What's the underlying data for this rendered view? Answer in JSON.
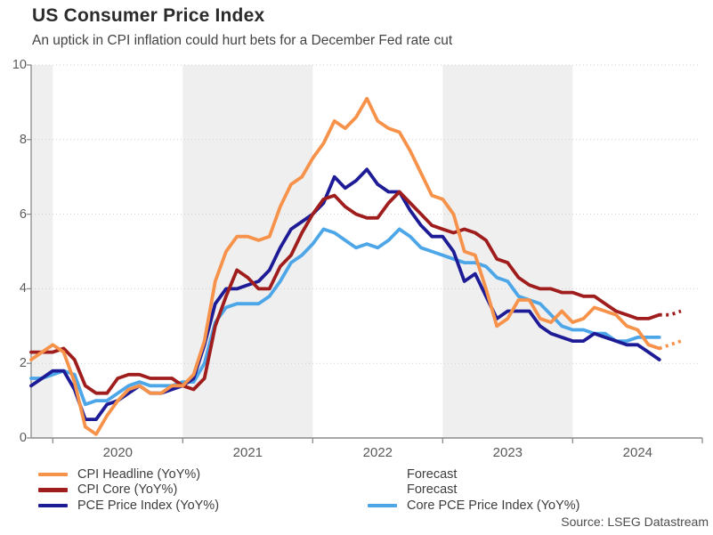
{
  "header": {
    "title": "US Consumer Price Index",
    "subtitle": "An uptick in CPI inflation could hurt bets for a December Fed rate cut"
  },
  "source_label": "Source: LSEG Datastream",
  "colors": {
    "cpi_headline": "#F7924A",
    "cpi_core": "#A01D1D",
    "pce": "#1E1B96",
    "core_pce": "#4DA6E8",
    "band": "#EFEFEF",
    "grid": "#CFCFCF",
    "axis": "#8C8C8C",
    "tick_text": "#595959"
  },
  "chart_data": {
    "type": "line",
    "title": "US Consumer Price Index",
    "subtitle": "An uptick in CPI inflation could hurt bets for a December Fed rate cut",
    "xlabel": "",
    "ylabel": "",
    "ylim": [
      0,
      10
    ],
    "yticks": [
      0,
      2,
      4,
      6,
      8,
      10
    ],
    "x_ticks_years": [
      "2020",
      "2021",
      "2022",
      "2023",
      "2024"
    ],
    "x_monthly_from": "2019-11",
    "x_solid_until": "2024-09",
    "forecast_months": [
      "2024-10",
      "2024-11"
    ],
    "grid": "horizontal-dotted",
    "background_bands_gray": [
      "pre-2020",
      "2021",
      "2023"
    ],
    "legend_position": "bottom",
    "series": [
      {
        "name": "Core PCE Price Index (YoY%)",
        "color": "#4DA6E8",
        "style": "solid",
        "values": [
          1.6,
          1.6,
          1.7,
          1.8,
          1.7,
          0.9,
          1.0,
          1.0,
          1.2,
          1.4,
          1.5,
          1.4,
          1.4,
          1.4,
          1.5,
          1.5,
          2.0,
          3.1,
          3.5,
          3.6,
          3.6,
          3.6,
          3.8,
          4.2,
          4.7,
          4.9,
          5.2,
          5.6,
          5.5,
          5.3,
          5.1,
          5.2,
          5.1,
          5.3,
          5.6,
          5.4,
          5.1,
          5.0,
          4.9,
          4.8,
          4.7,
          4.7,
          4.6,
          4.3,
          4.2,
          3.8,
          3.7,
          3.6,
          3.3,
          3.0,
          2.9,
          2.9,
          2.8,
          2.8,
          2.6,
          2.6,
          2.7,
          2.7,
          2.7
        ]
      },
      {
        "name": "PCE Price Index (YoY%)",
        "color": "#1E1B96",
        "style": "solid",
        "values": [
          1.4,
          1.6,
          1.8,
          1.8,
          1.3,
          0.5,
          0.5,
          0.9,
          1.0,
          1.2,
          1.4,
          1.2,
          1.2,
          1.3,
          1.4,
          1.6,
          2.5,
          3.6,
          4.0,
          4.0,
          4.1,
          4.2,
          4.5,
          5.1,
          5.6,
          5.8,
          6.0,
          6.3,
          7.0,
          6.7,
          6.9,
          7.2,
          6.8,
          6.6,
          6.6,
          6.1,
          5.7,
          5.4,
          5.4,
          5.0,
          4.2,
          4.4,
          3.8,
          3.2,
          3.4,
          3.4,
          3.4,
          3.0,
          2.8,
          2.7,
          2.6,
          2.6,
          2.8,
          2.7,
          2.6,
          2.5,
          2.5,
          2.3,
          2.1
        ]
      },
      {
        "name": "CPI Core (YoY%)",
        "color": "#A01D1D",
        "style": "solid",
        "values": [
          2.3,
          2.3,
          2.3,
          2.4,
          2.1,
          1.4,
          1.2,
          1.2,
          1.6,
          1.7,
          1.7,
          1.6,
          1.6,
          1.6,
          1.4,
          1.3,
          1.6,
          3.0,
          3.8,
          4.5,
          4.3,
          4.0,
          4.0,
          4.6,
          4.9,
          5.5,
          6.0,
          6.4,
          6.5,
          6.2,
          6.0,
          5.9,
          5.9,
          6.3,
          6.6,
          6.3,
          6.0,
          5.7,
          5.6,
          5.5,
          5.6,
          5.5,
          5.3,
          4.8,
          4.7,
          4.3,
          4.1,
          4.0,
          4.0,
          3.9,
          3.9,
          3.8,
          3.8,
          3.6,
          3.4,
          3.3,
          3.2,
          3.2,
          3.3
        ],
        "forecast_values": [
          3.3,
          3.4
        ]
      },
      {
        "name": "CPI Headline (YoY%)",
        "color": "#F7924A",
        "style": "solid",
        "values": [
          2.1,
          2.3,
          2.5,
          2.3,
          1.5,
          0.3,
          0.1,
          0.6,
          1.0,
          1.3,
          1.4,
          1.2,
          1.2,
          1.4,
          1.4,
          1.7,
          2.6,
          4.2,
          5.0,
          5.4,
          5.4,
          5.3,
          5.4,
          6.2,
          6.8,
          7.0,
          7.5,
          7.9,
          8.5,
          8.3,
          8.6,
          9.1,
          8.5,
          8.3,
          8.2,
          7.7,
          7.1,
          6.5,
          6.4,
          6.0,
          5.0,
          4.9,
          4.0,
          3.0,
          3.2,
          3.7,
          3.7,
          3.2,
          3.1,
          3.4,
          3.1,
          3.2,
          3.5,
          3.4,
          3.3,
          3.0,
          2.9,
          2.5,
          2.4
        ],
        "forecast_values": [
          2.5,
          2.6
        ]
      }
    ],
    "legend": {
      "columns": [
        [
          {
            "label": "CPI Headline (YoY%)",
            "color": "#F7924A",
            "style": "solid"
          },
          {
            "label": "CPI Core (YoY%)",
            "color": "#A01D1D",
            "style": "solid"
          },
          {
            "label": "PCE Price Index (YoY%)",
            "color": "#1E1B96",
            "style": "solid"
          }
        ],
        [
          {
            "label": "Forecast",
            "color": "#F7924A",
            "style": "dotted"
          },
          {
            "label": "Forecast",
            "color": "#A01D1D",
            "style": "dotted"
          },
          {
            "label": "Core PCE Price Index (YoY%)",
            "color": "#4DA6E8",
            "style": "solid"
          }
        ]
      ]
    }
  }
}
